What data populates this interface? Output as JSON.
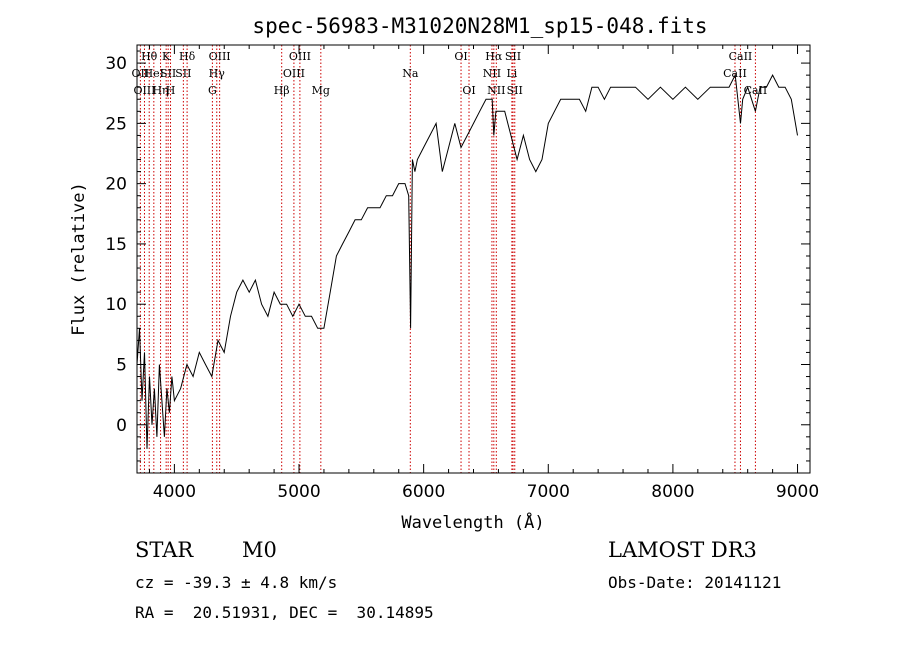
{
  "chart_data": {
    "type": "line",
    "title": "spec-56983-M31020N28M1_sp15-048.fits",
    "xlabel": "Wavelength (Å)",
    "ylabel": "Flux (relative)",
    "xlim": [
      3700,
      9100
    ],
    "ylim": [
      -4,
      31.5
    ],
    "x_ticks": [
      4000,
      5000,
      6000,
      7000,
      8000,
      9000
    ],
    "y_ticks": [
      0,
      5,
      10,
      15,
      20,
      25,
      30
    ],
    "grid": false,
    "legend": "none",
    "series": [
      {
        "color": "#000000",
        "x": [
          3700,
          3720,
          3740,
          3760,
          3780,
          3800,
          3820,
          3840,
          3860,
          3880,
          3900,
          3920,
          3940,
          3960,
          3980,
          4000,
          4050,
          4100,
          4150,
          4200,
          4250,
          4300,
          4350,
          4400,
          4450,
          4500,
          4550,
          4600,
          4650,
          4700,
          4750,
          4800,
          4850,
          4900,
          4950,
          5000,
          5050,
          5100,
          5150,
          5200,
          5250,
          5300,
          5350,
          5400,
          5450,
          5500,
          5550,
          5600,
          5650,
          5700,
          5750,
          5800,
          5850,
          5880,
          5895,
          5910,
          5930,
          5950,
          6000,
          6050,
          6100,
          6150,
          6200,
          6250,
          6300,
          6350,
          6400,
          6450,
          6500,
          6550,
          6563,
          6580,
          6600,
          6650,
          6700,
          6750,
          6800,
          6850,
          6900,
          6950,
          7000,
          7050,
          7100,
          7150,
          7200,
          7250,
          7300,
          7350,
          7400,
          7450,
          7500,
          7600,
          7700,
          7800,
          7900,
          8000,
          8100,
          8200,
          8300,
          8400,
          8450,
          8500,
          8542,
          8560,
          8600,
          8662,
          8700,
          8750,
          8800,
          8850,
          8900,
          8950,
          9000
        ],
        "y": [
          5,
          8,
          2,
          6,
          -2,
          4,
          0,
          3,
          -1,
          5,
          2,
          -1,
          3,
          1,
          4,
          2,
          3,
          5,
          4,
          6,
          5,
          4,
          7,
          6,
          9,
          11,
          12,
          11,
          12,
          10,
          9,
          11,
          10,
          10,
          9,
          10,
          9,
          9,
          8,
          8,
          11,
          14,
          15,
          16,
          17,
          17,
          18,
          18,
          18,
          19,
          19,
          20,
          20,
          19,
          8,
          22,
          21,
          22,
          23,
          24,
          25,
          21,
          23,
          25,
          23,
          24,
          25,
          26,
          27,
          27,
          24,
          26,
          26,
          26,
          24,
          22,
          24,
          22,
          21,
          22,
          25,
          26,
          27,
          27,
          27,
          27,
          26,
          28,
          28,
          27,
          28,
          28,
          28,
          27,
          28,
          27,
          28,
          27,
          28,
          28,
          28,
          29,
          25,
          27,
          28,
          26,
          28,
          28,
          29,
          28,
          28,
          27,
          24
        ]
      }
    ],
    "spectral_lines": [
      {
        "label": "Hθ",
        "x": 3798,
        "row": 0
      },
      {
        "label": "OII",
        "x": 3727,
        "row": 1
      },
      {
        "label": "OIII",
        "x": 3760,
        "row": 2
      },
      {
        "label": "HeI",
        "x": 3835,
        "row": 1
      },
      {
        "label": "Hη",
        "x": 3889,
        "row": 2
      },
      {
        "label": "K",
        "x": 3934,
        "row": 0
      },
      {
        "label": "SII",
        "x": 3950,
        "row": 1
      },
      {
        "label": "H",
        "x": 3969,
        "row": 2
      },
      {
        "label": "Hδ",
        "x": 4102,
        "row": 0
      },
      {
        "label": "SII",
        "x": 4072,
        "row": 1
      },
      {
        "label": "OIII",
        "x": 4363,
        "row": 0
      },
      {
        "label": "Hγ",
        "x": 4340,
        "row": 1
      },
      {
        "label": "G",
        "x": 4305,
        "row": 2
      },
      {
        "label": "Hβ",
        "x": 4861,
        "row": 2
      },
      {
        "label": "OIII",
        "x": 5007,
        "row": 0
      },
      {
        "label": "OIII",
        "x": 4959,
        "row": 1
      },
      {
        "label": "Mg",
        "x": 5175,
        "row": 2
      },
      {
        "label": "Na",
        "x": 5893,
        "row": 1
      },
      {
        "label": "OI",
        "x": 6300,
        "row": 0
      },
      {
        "label": "OI",
        "x": 6364,
        "row": 2
      },
      {
        "label": "Hα",
        "x": 6563,
        "row": 0
      },
      {
        "label": "NII",
        "x": 6548,
        "row": 1
      },
      {
        "label": "NII",
        "x": 6583,
        "row": 2
      },
      {
        "label": "SII",
        "x": 6717,
        "row": 0
      },
      {
        "label": "Li",
        "x": 6708,
        "row": 1
      },
      {
        "label": "SII",
        "x": 6731,
        "row": 2
      },
      {
        "label": "CaII",
        "x": 8542,
        "row": 0
      },
      {
        "label": "CaII",
        "x": 8498,
        "row": 1
      },
      {
        "label": "CaII",
        "x": 8662,
        "row": 2
      }
    ]
  },
  "info": {
    "object_class": "STAR",
    "subclass": "M0",
    "survey": "LAMOST DR3",
    "cz": "cz = -39.3 ± 4.8 km/s",
    "obs_date": "Obs-Date: 20141121",
    "coords": "RA =  20.51931, DEC =  30.14895"
  },
  "colors": {
    "spectrum": "#000000",
    "line_markers": "#cc0000"
  }
}
